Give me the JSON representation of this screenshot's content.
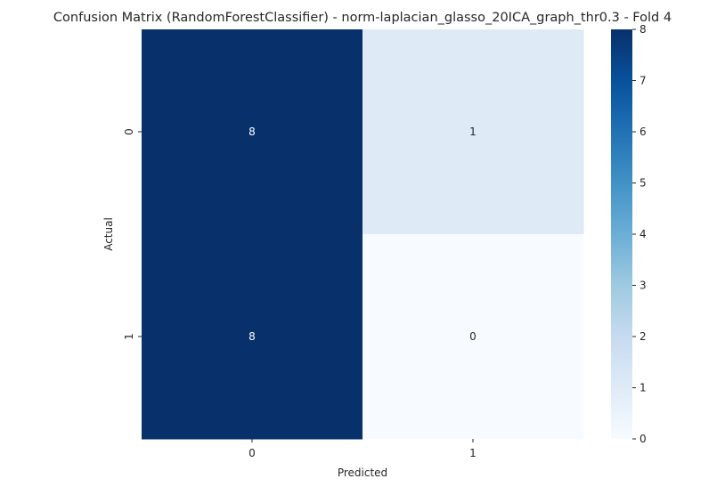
{
  "chart_data": {
    "type": "heatmap",
    "title": "Confusion Matrix (RandomForestClassifier) - norm-laplacian_glasso_20ICA_graph_thr0.3 - Fold 4",
    "xlabel": "Predicted",
    "ylabel": "Actual",
    "x_categories": [
      "0",
      "1"
    ],
    "y_categories": [
      "0",
      "1"
    ],
    "values": [
      [
        8,
        1
      ],
      [
        8,
        0
      ]
    ],
    "annotations": [
      [
        "8",
        "1"
      ],
      [
        "8",
        "0"
      ]
    ],
    "colormap": "Blues",
    "colorbar": {
      "min": 0,
      "max": 8,
      "ticks": [
        0,
        1,
        2,
        3,
        4,
        5,
        6,
        7,
        8
      ],
      "tick_labels": [
        "0",
        "1",
        "2",
        "3",
        "4",
        "5",
        "6",
        "7",
        "8"
      ]
    }
  }
}
